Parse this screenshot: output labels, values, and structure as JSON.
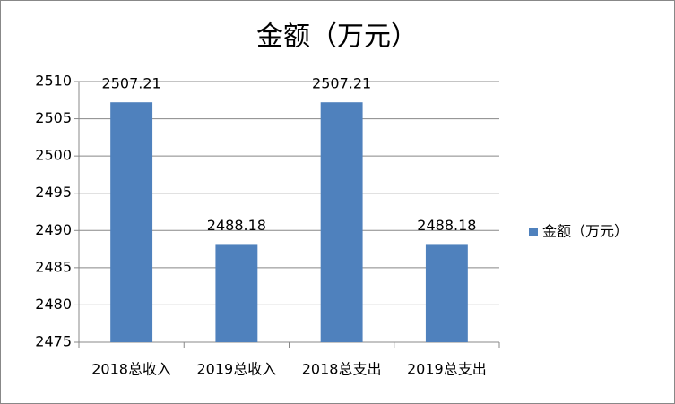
{
  "chart_data": {
    "type": "bar",
    "title": "金额（万元）",
    "categories": [
      "2018总收入",
      "2019总收入",
      "2018总支出",
      "2019总支出"
    ],
    "series": [
      {
        "name": "金额（万元）",
        "color": "#4f81bd",
        "values": [
          2507.21,
          2488.18,
          2507.21,
          2488.18
        ]
      }
    ],
    "ylim": [
      2475,
      2510
    ],
    "yticks": [
      2475,
      2480,
      2485,
      2490,
      2495,
      2500,
      2505,
      2510
    ],
    "grid": true,
    "legend": "right",
    "data_labels": true
  }
}
